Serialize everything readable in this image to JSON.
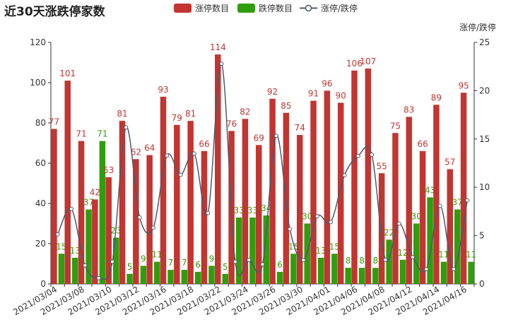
{
  "chart_data": {
    "type": "bar",
    "title": "近30天涨跌停家数",
    "legend": [
      "涨停数目",
      "跌停数目",
      "涨停/跌停"
    ],
    "y_right_label": "涨停/跌停",
    "colors": {
      "up": "#c23531",
      "down": "#2f9e0c",
      "line": "#4c5a6e"
    },
    "ylim_left": [
      0,
      120
    ],
    "ylim_right": [
      0,
      25
    ],
    "y_left_ticks": [
      0,
      20,
      40,
      60,
      80,
      100,
      120
    ],
    "y_right_ticks": [
      0,
      5,
      10,
      15,
      20,
      25
    ],
    "x_tick_labels": [
      "2021/03/04",
      "2021/03/08",
      "2021/03/10",
      "2021/03/12",
      "2021/03/16",
      "2021/03/18",
      "2021/03/22",
      "2021/03/24",
      "2021/03/26",
      "2021/03/30",
      "2021/04/01",
      "2021/04/06",
      "2021/04/08",
      "2021/04/12",
      "2021/04/14",
      "2021/04/16"
    ],
    "series": [
      {
        "name": "涨停数目",
        "values": [
          77,
          101,
          71,
          42,
          53,
          81,
          62,
          64,
          93,
          79,
          81,
          66,
          114,
          76,
          82,
          69,
          92,
          85,
          74,
          91,
          96,
          90,
          106,
          107,
          55,
          75,
          83,
          66,
          89,
          57,
          95
        ]
      },
      {
        "name": "跌停数目",
        "values": [
          15,
          13,
          37,
          71,
          23,
          5,
          9,
          11,
          7,
          7,
          6,
          9,
          5,
          33,
          33,
          34,
          6,
          15,
          30,
          13,
          15,
          8,
          8,
          8,
          22,
          12,
          30,
          43,
          11,
          37,
          11
        ]
      },
      {
        "name": "涨停/跌停",
        "axis": "right",
        "values": [
          5.13,
          7.77,
          1.92,
          0.59,
          2.3,
          16.2,
          6.89,
          5.82,
          13.29,
          11.29,
          13.5,
          7.33,
          22.8,
          2.3,
          2.48,
          2.03,
          15.33,
          5.67,
          2.47,
          7.0,
          6.4,
          11.25,
          13.25,
          13.38,
          2.5,
          6.25,
          2.77,
          1.53,
          8.09,
          1.54,
          8.64
        ]
      }
    ]
  }
}
